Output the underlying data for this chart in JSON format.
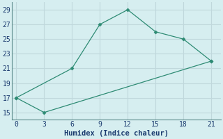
{
  "title": "",
  "xlabel": "Humidex (Indice chaleur)",
  "line1_x": [
    0,
    6,
    9,
    12,
    15,
    18,
    21
  ],
  "line1_y": [
    17,
    21,
    27,
    29,
    26,
    25,
    22
  ],
  "line2_x": [
    0,
    3,
    21
  ],
  "line2_y": [
    17,
    15,
    22
  ],
  "line_color": "#2e8b74",
  "bg_color": "#d6eef0",
  "grid_color": "#c0d8dc",
  "xlim": [
    -0.5,
    22
  ],
  "ylim": [
    14,
    30
  ],
  "xticks": [
    0,
    3,
    6,
    9,
    12,
    15,
    18,
    21
  ],
  "yticks": [
    15,
    17,
    19,
    21,
    23,
    25,
    27,
    29
  ],
  "xlabel_color": "#1a3a6e",
  "tick_color": "#1a3a6e",
  "xlabel_fontsize": 7.5,
  "tick_fontsize": 7
}
